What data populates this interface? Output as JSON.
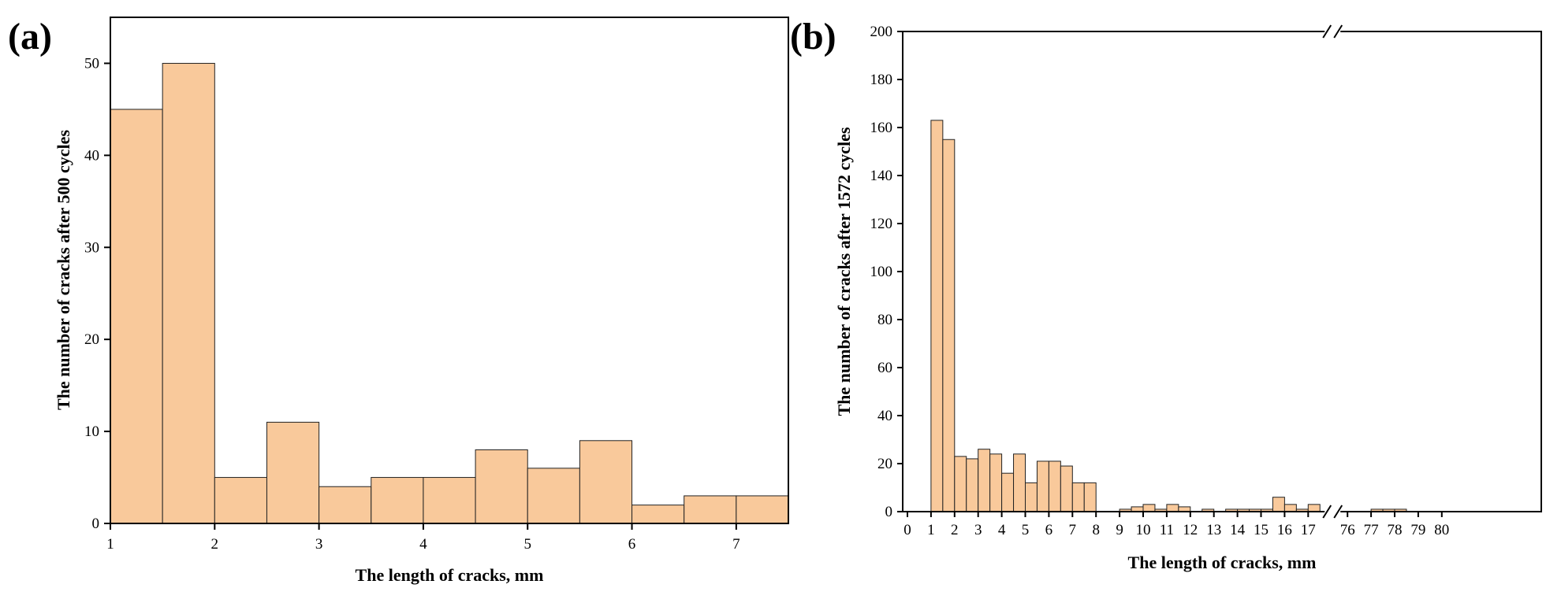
{
  "colors": {
    "bar_fill": "#f9c99b",
    "bar_stroke": "#222222",
    "axis": "#000000"
  },
  "chart_data": [
    {
      "type": "bar",
      "panel_label": "(a)",
      "xlabel": "The length of cracks, mm",
      "ylabel": "The number of cracks after 500 cycles",
      "xlim": [
        1,
        7.5
      ],
      "ylim": [
        0,
        55
      ],
      "xticks": [
        1,
        2,
        3,
        4,
        5,
        6,
        7
      ],
      "yticks": [
        0,
        10,
        20,
        30,
        40,
        50
      ],
      "bin_width": 0.5,
      "bin_starts": [
        1,
        1.5,
        2,
        2.5,
        3,
        3.5,
        4,
        4.5,
        5,
        5.5,
        6,
        6.5,
        7
      ],
      "values": [
        45,
        50,
        5,
        11,
        4,
        5,
        5,
        8,
        6,
        9,
        2,
        3,
        3
      ],
      "grid": false
    },
    {
      "type": "bar",
      "panel_label": "(b)",
      "xlabel": "The length of cracks, mm",
      "ylabel": "The number of cracks after 1572 cycles",
      "axis_break": [
        17.7,
        75.7
      ],
      "xlim": [
        0,
        80
      ],
      "ylim": [
        0,
        200
      ],
      "xticks": [
        0,
        1,
        2,
        3,
        4,
        5,
        6,
        7,
        8,
        9,
        10,
        11,
        12,
        13,
        14,
        15,
        16,
        17,
        76,
        77,
        78,
        79,
        80
      ],
      "yticks": [
        0,
        20,
        40,
        60,
        80,
        100,
        120,
        140,
        160,
        180,
        200
      ],
      "bin_width": 0.5,
      "bin_starts": [
        1,
        1.5,
        2,
        2.5,
        3,
        3.5,
        4,
        4.5,
        5,
        5.5,
        6,
        6.5,
        7,
        7.5,
        9,
        9.5,
        10,
        10.5,
        11,
        11.5,
        12.5,
        13.5,
        14,
        14.5,
        15,
        15.5,
        16,
        16.5,
        17,
        77,
        77.5,
        78
      ],
      "values": [
        163,
        155,
        23,
        22,
        26,
        24,
        16,
        24,
        12,
        21,
        21,
        19,
        12,
        12,
        1,
        2,
        3,
        1,
        3,
        2,
        1,
        1,
        1,
        1,
        1,
        6,
        3,
        1,
        3,
        1,
        1,
        1
      ],
      "grid": false
    }
  ]
}
